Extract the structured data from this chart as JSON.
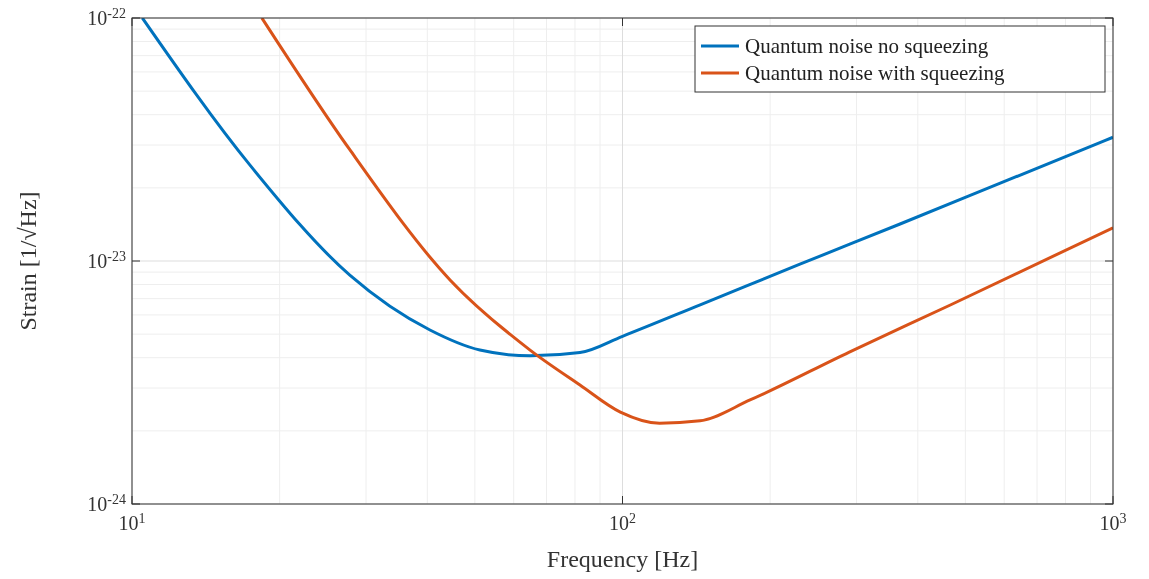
{
  "chart_data": {
    "type": "line",
    "xlabel": "Frequency [Hz]",
    "ylabel": "Strain [1/√Hz]",
    "log": "xy",
    "grid": true,
    "legend": "top right",
    "marker": "none",
    "line_style": "solid",
    "xlim": [
      10,
      1000
    ],
    "xticks": [
      {
        "value": 10,
        "label": "10$^{1}$"
      },
      {
        "value": 100,
        "label": "10$^{2}$"
      },
      {
        "value": 1000,
        "label": "10$^{3}$"
      }
    ],
    "ylim": [
      1e-24,
      1e-22
    ],
    "yticks": [
      {
        "value": 1e-24,
        "label": "10$^{-24}$"
      },
      {
        "value": 1e-23,
        "label": "10$^{-23}$"
      },
      {
        "value": 1e-22,
        "label": "10$^{-22}$"
      }
    ],
    "series": [
      {
        "name": "Quantum noise no squeezing",
        "color": "#0072bd",
        "x": [
          10.5,
          17.4,
          27.8,
          40.5,
          51.2,
          64.8,
          81.9,
          100,
          144,
          230,
          368,
          589,
          1000
        ],
        "values": [
          1e-22,
          2.48e-23,
          8.75e-24,
          5.2e-24,
          4.3e-24,
          4.07e-24,
          4.2e-24,
          4.9e-24,
          6.6e-24,
          9.7e-24,
          1.42e-23,
          2.09e-23,
          3.23e-23
        ]
      },
      {
        "name": "Quantum noise with squeezing",
        "color": "#d95319",
        "x": [
          18.4,
          27.8,
          44.5,
          64.8,
          81.9,
          99,
          119,
          144,
          182,
          290,
          466,
          1000
        ],
        "values": [
          1e-22,
          2.87e-23,
          8.36e-24,
          4.3e-24,
          3.09e-24,
          2.39e-24,
          2.15e-24,
          2.2e-24,
          2.68e-24,
          4.22e-24,
          6.59e-24,
          1.37e-23
        ]
      }
    ]
  }
}
